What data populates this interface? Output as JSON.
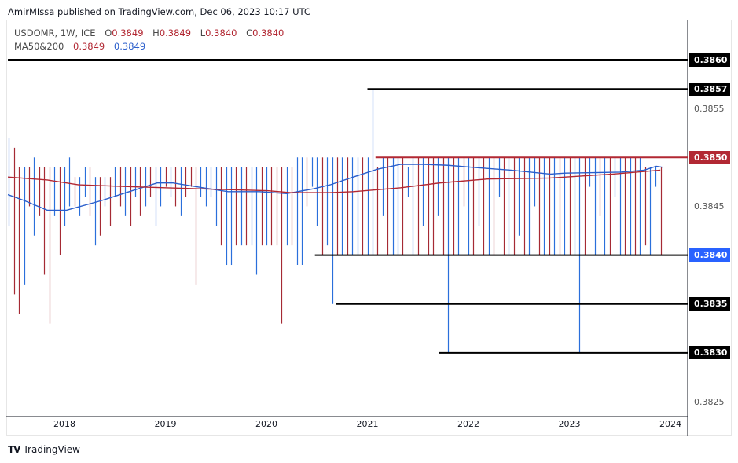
{
  "header": {
    "published": "AmirMIssa published on TradingView.com, Dec 06, 2023 10:17 UTC"
  },
  "legend": {
    "symbol": "USDOMR, 1W, ICE",
    "open_label": "O",
    "open": "0.3849",
    "high_label": "H",
    "high": "0.3849",
    "low_label": "L",
    "low": "0.3840",
    "close_label": "C",
    "close": "0.3840",
    "ma_label": "MA50&200",
    "ma50": "0.3849",
    "ma200": "0.3849"
  },
  "footer": {
    "brand": "TradingView",
    "logo_text": "TV"
  },
  "colors": {
    "up": "#2a6fdb",
    "down": "#a52a34",
    "ma50": "#2a5ecb",
    "ma200": "#b22833",
    "level": "#000000",
    "resistance": "#b22833",
    "last_price": "#2962ff"
  },
  "chart_data": {
    "type": "ohlc",
    "xlabel": "",
    "ylabel": "",
    "x_ticks": [
      "2018",
      "2019",
      "2020",
      "2021",
      "2022",
      "2023",
      "2024"
    ],
    "y_ticks": [
      "0.3825",
      "0.3845",
      "0.3855"
    ],
    "ylim": [
      0.38225,
      0.38635
    ],
    "xlim": [
      2017.44,
      2024.15
    ],
    "price_labels": [
      {
        "value": "0.3860",
        "style": "black"
      },
      {
        "value": "0.3857",
        "style": "black"
      },
      {
        "value": "0.3850",
        "style": "red"
      },
      {
        "value": "0.3840",
        "style": "blue"
      },
      {
        "value": "0.3835",
        "style": "black"
      },
      {
        "value": "0.3830",
        "style": "black"
      }
    ],
    "horizontal_lines": [
      {
        "price": 0.386,
        "from": 2017.44,
        "color": "black"
      },
      {
        "price": 0.3857,
        "from": 2021.0,
        "color": "black"
      },
      {
        "price": 0.385,
        "from": 2021.08,
        "color": "red"
      },
      {
        "price": 0.384,
        "from": 2020.48,
        "color": "black"
      },
      {
        "price": 0.3835,
        "from": 2020.69,
        "color": "black"
      },
      {
        "price": 0.383,
        "from": 2021.71,
        "color": "black"
      }
    ],
    "bars": [
      [
        2017.45,
        0.3852,
        0.3843,
        "u"
      ],
      [
        2017.5,
        0.3851,
        0.3836,
        "d"
      ],
      [
        2017.55,
        0.3849,
        0.3834,
        "d"
      ],
      [
        2017.6,
        0.3849,
        0.3837,
        "u"
      ],
      [
        2017.65,
        0.3849,
        0.3845,
        "d"
      ],
      [
        2017.7,
        0.385,
        0.3842,
        "u"
      ],
      [
        2017.75,
        0.3849,
        0.3844,
        "d"
      ],
      [
        2017.8,
        0.3849,
        0.3838,
        "d"
      ],
      [
        2017.85,
        0.3849,
        0.3833,
        "d"
      ],
      [
        2017.9,
        0.3849,
        0.3844,
        "u"
      ],
      [
        2017.95,
        0.3849,
        0.384,
        "d"
      ],
      [
        2018.0,
        0.3849,
        0.3843,
        "u"
      ],
      [
        2018.05,
        0.385,
        0.3845,
        "u"
      ],
      [
        2018.1,
        0.3848,
        0.3845,
        "d"
      ],
      [
        2018.15,
        0.3848,
        0.3844,
        "u"
      ],
      [
        2018.2,
        0.3849,
        0.3846,
        "u"
      ],
      [
        2018.25,
        0.3849,
        0.3844,
        "d"
      ],
      [
        2018.3,
        0.3848,
        0.3841,
        "u"
      ],
      [
        2018.35,
        0.3848,
        0.3842,
        "d"
      ],
      [
        2018.4,
        0.3848,
        0.3845,
        "u"
      ],
      [
        2018.45,
        0.3848,
        0.3843,
        "d"
      ],
      [
        2018.5,
        0.3849,
        0.3846,
        "u"
      ],
      [
        2018.55,
        0.3849,
        0.3845,
        "d"
      ],
      [
        2018.6,
        0.3849,
        0.3844,
        "u"
      ],
      [
        2018.65,
        0.3849,
        0.3843,
        "d"
      ],
      [
        2018.7,
        0.3849,
        0.3846,
        "u"
      ],
      [
        2018.75,
        0.3849,
        0.3844,
        "d"
      ],
      [
        2018.8,
        0.3849,
        0.3845,
        "u"
      ],
      [
        2018.85,
        0.3849,
        0.3846,
        "d"
      ],
      [
        2018.9,
        0.3849,
        0.3843,
        "u"
      ],
      [
        2018.95,
        0.3849,
        0.3845,
        "u"
      ],
      [
        2019.0,
        0.3849,
        0.3847,
        "d"
      ],
      [
        2019.05,
        0.3849,
        0.3846,
        "u"
      ],
      [
        2019.1,
        0.3849,
        0.3845,
        "d"
      ],
      [
        2019.15,
        0.3849,
        0.3844,
        "u"
      ],
      [
        2019.2,
        0.3849,
        0.3846,
        "d"
      ],
      [
        2019.25,
        0.3849,
        0.3847,
        "d"
      ],
      [
        2019.3,
        0.3849,
        0.3837,
        "d"
      ],
      [
        2019.35,
        0.3849,
        0.3846,
        "u"
      ],
      [
        2019.4,
        0.3849,
        0.3845,
        "u"
      ],
      [
        2019.45,
        0.3849,
        0.3846,
        "u"
      ],
      [
        2019.5,
        0.3849,
        0.3843,
        "u"
      ],
      [
        2019.55,
        0.3849,
        0.3841,
        "d"
      ],
      [
        2019.6,
        0.3849,
        0.3839,
        "u"
      ],
      [
        2019.65,
        0.3849,
        0.3839,
        "u"
      ],
      [
        2019.7,
        0.3849,
        0.3841,
        "d"
      ],
      [
        2019.75,
        0.3849,
        0.3841,
        "u"
      ],
      [
        2019.8,
        0.3849,
        0.3841,
        "d"
      ],
      [
        2019.85,
        0.3849,
        0.3841,
        "u"
      ],
      [
        2019.9,
        0.3849,
        0.3838,
        "u"
      ],
      [
        2019.95,
        0.3849,
        0.3841,
        "d"
      ],
      [
        2020.0,
        0.3849,
        0.3841,
        "u"
      ],
      [
        2020.05,
        0.3849,
        0.3841,
        "d"
      ],
      [
        2020.1,
        0.3849,
        0.3841,
        "d"
      ],
      [
        2020.15,
        0.3849,
        0.3833,
        "d"
      ],
      [
        2020.2,
        0.3849,
        0.3841,
        "u"
      ],
      [
        2020.25,
        0.3849,
        0.3841,
        "d"
      ],
      [
        2020.3,
        0.385,
        0.3839,
        "u"
      ],
      [
        2020.35,
        0.385,
        0.3839,
        "u"
      ],
      [
        2020.4,
        0.385,
        0.3845,
        "d"
      ],
      [
        2020.45,
        0.385,
        0.3847,
        "u"
      ],
      [
        2020.5,
        0.385,
        0.3843,
        "u"
      ],
      [
        2020.55,
        0.385,
        0.384,
        "d"
      ],
      [
        2020.6,
        0.385,
        0.3841,
        "u"
      ],
      [
        2020.65,
        0.385,
        0.3835,
        "u"
      ],
      [
        2020.7,
        0.385,
        0.384,
        "d"
      ],
      [
        2020.75,
        0.385,
        0.384,
        "u"
      ],
      [
        2020.8,
        0.385,
        0.384,
        "d"
      ],
      [
        2020.85,
        0.385,
        0.384,
        "u"
      ],
      [
        2020.9,
        0.385,
        0.384,
        "u"
      ],
      [
        2020.95,
        0.385,
        0.384,
        "d"
      ],
      [
        2021.0,
        0.385,
        0.384,
        "u"
      ],
      [
        2021.05,
        0.3857,
        0.384,
        "u"
      ],
      [
        2021.1,
        0.3849,
        0.384,
        "d"
      ],
      [
        2021.15,
        0.385,
        0.3844,
        "u"
      ],
      [
        2021.2,
        0.385,
        0.384,
        "d"
      ],
      [
        2021.25,
        0.385,
        0.384,
        "u"
      ],
      [
        2021.3,
        0.385,
        0.384,
        "u"
      ],
      [
        2021.35,
        0.385,
        0.384,
        "d"
      ],
      [
        2021.4,
        0.3849,
        0.3846,
        "u"
      ],
      [
        2021.45,
        0.385,
        0.384,
        "u"
      ],
      [
        2021.5,
        0.385,
        0.384,
        "d"
      ],
      [
        2021.55,
        0.385,
        0.3843,
        "u"
      ],
      [
        2021.6,
        0.385,
        0.384,
        "d"
      ],
      [
        2021.65,
        0.385,
        0.384,
        "d"
      ],
      [
        2021.7,
        0.385,
        0.3844,
        "u"
      ],
      [
        2021.75,
        0.385,
        0.384,
        "d"
      ],
      [
        2021.8,
        0.385,
        0.383,
        "u"
      ],
      [
        2021.85,
        0.385,
        0.384,
        "d"
      ],
      [
        2021.9,
        0.385,
        0.384,
        "u"
      ],
      [
        2021.95,
        0.385,
        0.3845,
        "d"
      ],
      [
        2022.0,
        0.385,
        0.384,
        "u"
      ],
      [
        2022.05,
        0.385,
        0.384,
        "d"
      ],
      [
        2022.1,
        0.385,
        0.3843,
        "u"
      ],
      [
        2022.15,
        0.385,
        0.384,
        "d"
      ],
      [
        2022.2,
        0.385,
        0.384,
        "u"
      ],
      [
        2022.25,
        0.385,
        0.384,
        "d"
      ],
      [
        2022.3,
        0.385,
        0.3846,
        "u"
      ],
      [
        2022.35,
        0.385,
        0.384,
        "d"
      ],
      [
        2022.4,
        0.385,
        0.384,
        "u"
      ],
      [
        2022.45,
        0.385,
        0.384,
        "d"
      ],
      [
        2022.5,
        0.385,
        0.3842,
        "u"
      ],
      [
        2022.55,
        0.385,
        0.384,
        "d"
      ],
      [
        2022.6,
        0.385,
        0.384,
        "u"
      ],
      [
        2022.65,
        0.385,
        0.3845,
        "u"
      ],
      [
        2022.7,
        0.385,
        0.384,
        "d"
      ],
      [
        2022.75,
        0.385,
        0.384,
        "u"
      ],
      [
        2022.8,
        0.385,
        0.384,
        "d"
      ],
      [
        2022.85,
        0.385,
        0.384,
        "u"
      ],
      [
        2022.9,
        0.385,
        0.384,
        "d"
      ],
      [
        2022.95,
        0.385,
        0.384,
        "u"
      ],
      [
        2023.0,
        0.385,
        0.384,
        "d"
      ],
      [
        2023.05,
        0.385,
        0.384,
        "u"
      ],
      [
        2023.1,
        0.385,
        0.383,
        "u"
      ],
      [
        2023.15,
        0.385,
        0.384,
        "d"
      ],
      [
        2023.2,
        0.385,
        0.3847,
        "u"
      ],
      [
        2023.25,
        0.385,
        0.384,
        "u"
      ],
      [
        2023.3,
        0.385,
        0.3844,
        "d"
      ],
      [
        2023.35,
        0.385,
        0.384,
        "u"
      ],
      [
        2023.4,
        0.385,
        0.384,
        "d"
      ],
      [
        2023.45,
        0.385,
        0.3846,
        "u"
      ],
      [
        2023.5,
        0.385,
        0.384,
        "u"
      ],
      [
        2023.55,
        0.385,
        0.384,
        "d"
      ],
      [
        2023.6,
        0.385,
        0.384,
        "u"
      ],
      [
        2023.65,
        0.385,
        0.384,
        "d"
      ],
      [
        2023.7,
        0.385,
        0.384,
        "u"
      ],
      [
        2023.75,
        0.3849,
        0.3841,
        "d"
      ],
      [
        2023.8,
        0.3849,
        0.384,
        "u"
      ],
      [
        2023.85,
        0.3849,
        0.3847,
        "u"
      ],
      [
        2023.91,
        0.3849,
        0.384,
        "d"
      ]
    ],
    "series": [
      {
        "name": "MA50",
        "color": "#2a5ecb",
        "points": [
          [
            2017.44,
            0.38462
          ],
          [
            2017.6,
            0.38456
          ],
          [
            2017.83,
            0.38446
          ],
          [
            2018.02,
            0.38446
          ],
          [
            2018.37,
            0.38456
          ],
          [
            2018.61,
            0.38464
          ],
          [
            2018.92,
            0.38474
          ],
          [
            2019.07,
            0.38474
          ],
          [
            2019.31,
            0.3847
          ],
          [
            2019.62,
            0.38465
          ],
          [
            2019.93,
            0.38465
          ],
          [
            2020.2,
            0.38463
          ],
          [
            2020.47,
            0.38468
          ],
          [
            2020.63,
            0.38472
          ],
          [
            2020.86,
            0.3848
          ],
          [
            2021.1,
            0.38488
          ],
          [
            2021.33,
            0.38493
          ],
          [
            2021.56,
            0.38493
          ],
          [
            2021.8,
            0.38492
          ],
          [
            2022.03,
            0.3849
          ],
          [
            2022.42,
            0.38487
          ],
          [
            2022.81,
            0.38483
          ],
          [
            2022.96,
            0.38484
          ],
          [
            2023.51,
            0.38485
          ],
          [
            2023.74,
            0.38487
          ],
          [
            2023.86,
            0.38491
          ],
          [
            2023.92,
            0.3849
          ]
        ]
      },
      {
        "name": "MA200",
        "color": "#b22833",
        "points": [
          [
            2017.44,
            0.3848
          ],
          [
            2017.83,
            0.38477
          ],
          [
            2018.14,
            0.38472
          ],
          [
            2018.68,
            0.3847
          ],
          [
            2019.31,
            0.38468
          ],
          [
            2020.01,
            0.38466
          ],
          [
            2020.24,
            0.38464
          ],
          [
            2020.63,
            0.38464
          ],
          [
            2020.86,
            0.38465
          ],
          [
            2021.33,
            0.38469
          ],
          [
            2021.72,
            0.38474
          ],
          [
            2022.19,
            0.38478
          ],
          [
            2022.81,
            0.38479
          ],
          [
            2023.43,
            0.38483
          ],
          [
            2023.9,
            0.38487
          ]
        ]
      }
    ]
  }
}
